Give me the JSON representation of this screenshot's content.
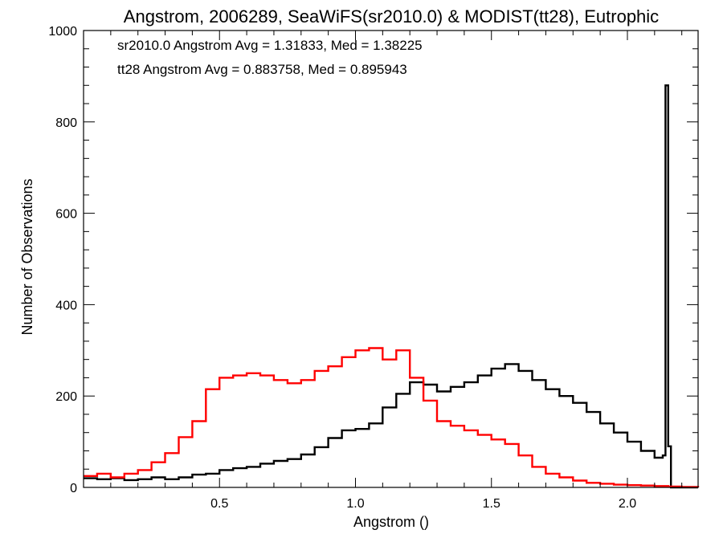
{
  "chart_data": {
    "type": "line",
    "title": "Angstrom, 2006289, SeaWiFS(sr2010.0) & MODIST(tt28), Eutrophic",
    "xlabel": "Angstrom ()",
    "ylabel": "Number of Observations",
    "xlim": [
      0.0,
      2.26
    ],
    "ylim": [
      0,
      1000
    ],
    "x_ticks": [
      0.5,
      1.0,
      1.5,
      2.0
    ],
    "x_tick_labels": [
      "0.5",
      "1.0",
      "1.5",
      "2.0"
    ],
    "y_ticks": [
      0,
      200,
      400,
      600,
      800,
      1000
    ],
    "y_tick_labels": [
      "0",
      "200",
      "400",
      "600",
      "800",
      "1000"
    ],
    "grid": false,
    "step": true,
    "annotations": [
      {
        "text": "sr2010.0 Angstrom Avg = 1.31833, Med = 1.38225",
        "color": "#000000"
      },
      {
        "text": "tt28 Angstrom Avg = 0.883758, Med = 0.895943",
        "color": "#ff0000"
      }
    ],
    "series": [
      {
        "name": "sr2010.0",
        "color": "#000000",
        "x": [
          0.0,
          0.05,
          0.1,
          0.15,
          0.2,
          0.25,
          0.3,
          0.35,
          0.4,
          0.45,
          0.5,
          0.55,
          0.6,
          0.65,
          0.7,
          0.75,
          0.8,
          0.85,
          0.9,
          0.95,
          1.0,
          1.05,
          1.1,
          1.15,
          1.2,
          1.25,
          1.3,
          1.35,
          1.4,
          1.45,
          1.5,
          1.55,
          1.6,
          1.65,
          1.7,
          1.75,
          1.8,
          1.85,
          1.9,
          1.95,
          2.0,
          2.05,
          2.1,
          2.13,
          2.14,
          2.15,
          2.16,
          2.2,
          2.26
        ],
        "y": [
          20,
          18,
          20,
          16,
          18,
          22,
          18,
          22,
          28,
          30,
          38,
          42,
          45,
          52,
          58,
          62,
          72,
          88,
          108,
          125,
          128,
          140,
          175,
          205,
          230,
          225,
          210,
          220,
          230,
          245,
          260,
          270,
          255,
          235,
          215,
          200,
          185,
          165,
          140,
          120,
          100,
          80,
          65,
          70,
          880,
          90,
          0,
          0,
          0
        ]
      },
      {
        "name": "tt28",
        "color": "#ff0000",
        "x": [
          0.0,
          0.05,
          0.1,
          0.15,
          0.2,
          0.25,
          0.3,
          0.35,
          0.4,
          0.45,
          0.5,
          0.55,
          0.6,
          0.65,
          0.7,
          0.75,
          0.8,
          0.85,
          0.9,
          0.95,
          1.0,
          1.05,
          1.1,
          1.15,
          1.2,
          1.25,
          1.3,
          1.35,
          1.4,
          1.45,
          1.5,
          1.55,
          1.6,
          1.65,
          1.7,
          1.75,
          1.8,
          1.85,
          1.9,
          1.95,
          2.0,
          2.05,
          2.1,
          2.15,
          2.2,
          2.26
        ],
        "y": [
          25,
          30,
          22,
          30,
          38,
          55,
          75,
          110,
          145,
          215,
          240,
          245,
          250,
          245,
          235,
          228,
          235,
          255,
          265,
          285,
          300,
          305,
          280,
          300,
          240,
          190,
          145,
          135,
          125,
          115,
          105,
          95,
          70,
          45,
          30,
          22,
          15,
          10,
          8,
          6,
          5,
          4,
          3,
          2,
          1,
          0
        ]
      }
    ]
  }
}
